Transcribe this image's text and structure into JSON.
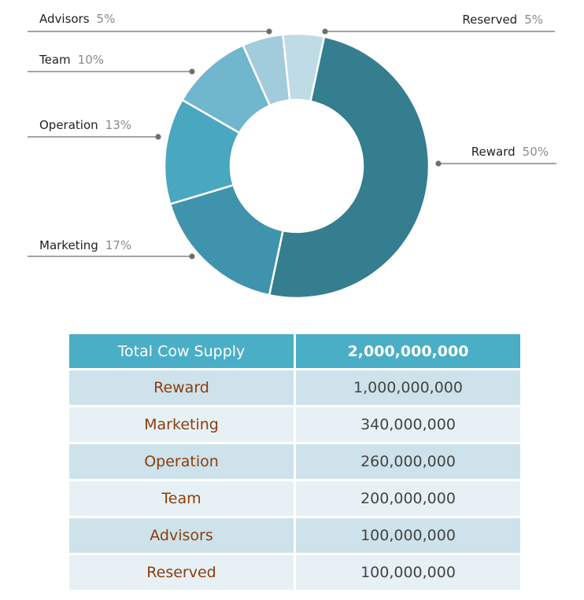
{
  "chart_data": {
    "type": "pie",
    "donut": true,
    "slices": [
      {
        "label": "Reward",
        "percent_label": "50%",
        "value": 50,
        "color": "#347e90"
      },
      {
        "label": "Marketing",
        "percent_label": "17%",
        "value": 17,
        "color": "#3f93ad"
      },
      {
        "label": "Operation",
        "percent_label": "13%",
        "value": 13,
        "color": "#49a7c0"
      },
      {
        "label": "Team",
        "percent_label": "10%",
        "value": 10,
        "color": "#70b6cd"
      },
      {
        "label": "Advisors",
        "percent_label": "5%",
        "value": 5,
        "color": "#a2cbdb"
      },
      {
        "label": "Reserved",
        "percent_label": "5%",
        "value": 5,
        "color": "#bfdbe5"
      }
    ]
  },
  "table": {
    "header": {
      "label": "Total Cow Supply",
      "value": "2,000,000,000"
    },
    "rows": [
      {
        "label": "Reward",
        "value": "1,000,000,000"
      },
      {
        "label": "Marketing",
        "value": "340,000,000"
      },
      {
        "label": "Operation",
        "value": "260,000,000"
      },
      {
        "label": "Team",
        "value": "200,000,000"
      },
      {
        "label": "Advisors",
        "value": "100,000,000"
      },
      {
        "label": "Reserved",
        "value": "100,000,000"
      }
    ]
  },
  "colors": {
    "header_bg": "#4aaec6",
    "row_odd_bg": "#cde2ea",
    "row_even_bg": "#e7f1f5",
    "category_text": "#8c3d0b"
  }
}
